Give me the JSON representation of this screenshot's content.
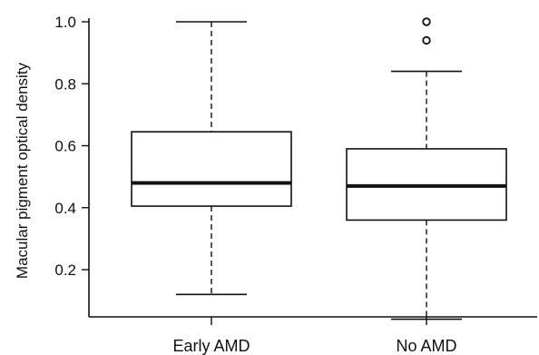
{
  "chart_data": {
    "type": "box",
    "title": "",
    "xlabel": "",
    "ylabel": "Macular pigment optical density",
    "ylim": [
      0.04,
      1.0
    ],
    "yticks": [
      "0.2",
      "0.4",
      "0.6",
      "0.8",
      "1.0"
    ],
    "ytick_values": [
      0.2,
      0.4,
      0.6,
      0.8,
      1.0
    ],
    "grid": false,
    "legend": "none",
    "categories": [
      "Early AMD",
      "No AMD"
    ],
    "boxes": [
      {
        "category": "Early AMD",
        "whisker_low": 0.12,
        "q1": 0.405,
        "median": 0.48,
        "q3": 0.645,
        "whisker_high": 1.0,
        "outliers": []
      },
      {
        "category": "No AMD",
        "whisker_low": 0.04,
        "q1": 0.36,
        "median": 0.47,
        "q3": 0.59,
        "whisker_high": 0.84,
        "outliers": [
          0.94,
          1.0
        ]
      }
    ],
    "colors": {
      "line": "#111111",
      "box_fill": "#ffffff",
      "background": "#ffffff"
    }
  }
}
